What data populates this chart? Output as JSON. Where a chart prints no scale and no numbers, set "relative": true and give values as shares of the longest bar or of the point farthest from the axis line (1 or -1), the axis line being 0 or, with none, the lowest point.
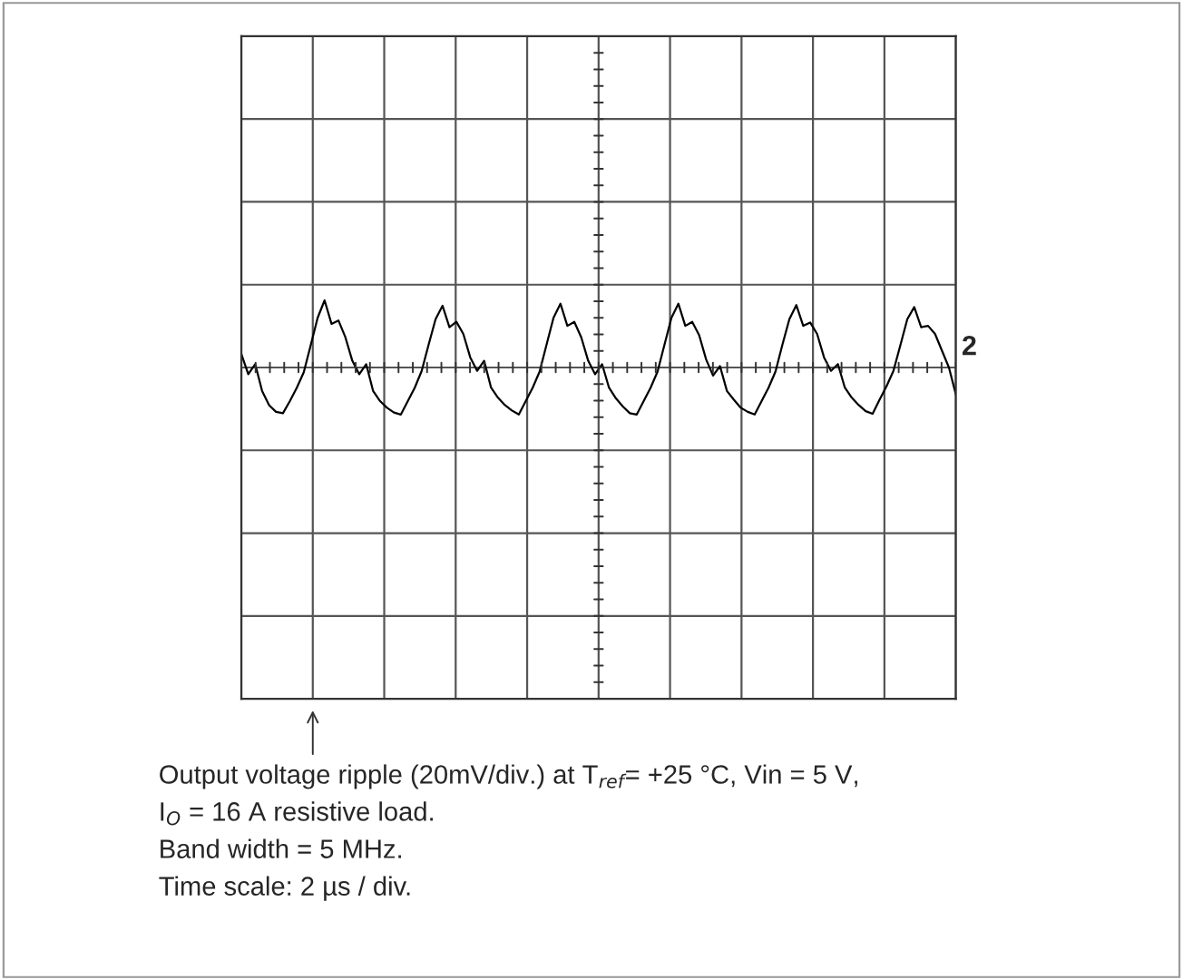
{
  "chart_data": {
    "type": "line",
    "relative": true,
    "grid": true,
    "tick_labels": false,
    "categories": [
      null,
      null,
      null,
      null,
      null,
      null,
      null,
      null,
      null,
      null,
      null,
      null,
      null,
      null,
      null,
      null,
      null,
      null,
      null,
      null,
      null,
      null,
      null,
      null,
      null,
      null,
      null,
      null,
      null,
      null,
      null,
      null,
      null,
      null,
      null,
      null,
      null,
      null,
      null,
      null,
      null,
      null,
      null,
      null,
      null,
      null,
      null,
      null,
      null,
      null,
      null,
      null,
      null,
      null,
      null,
      null,
      null,
      null,
      null,
      null,
      null,
      null,
      null,
      null,
      null,
      null,
      null,
      null,
      null,
      null,
      null,
      null,
      null,
      null,
      null,
      null,
      null,
      null,
      null,
      null,
      null,
      null,
      null,
      null,
      null,
      null,
      null,
      null,
      null,
      null,
      null,
      null,
      null,
      null,
      null,
      null,
      null,
      null,
      null,
      null,
      null,
      null,
      null,
      null
    ],
    "series": [
      {
        "color": "#000000",
        "values": [
          0.2,
          -0.1,
          0.05,
          -0.35,
          -0.56,
          -0.66,
          -0.68,
          -0.5,
          -0.3,
          -0.07,
          0.33,
          0.74,
          1.0,
          0.65,
          0.7,
          0.45,
          0.1,
          -0.1,
          0.05,
          -0.35,
          -0.5,
          -0.6,
          -0.67,
          -0.7,
          -0.5,
          -0.3,
          -0.05,
          0.34,
          0.72,
          0.92,
          0.6,
          0.68,
          0.5,
          0.15,
          -0.05,
          0.1,
          -0.3,
          -0.45,
          -0.56,
          -0.64,
          -0.7,
          -0.5,
          -0.3,
          -0.06,
          0.34,
          0.74,
          0.95,
          0.62,
          0.68,
          0.45,
          0.1,
          -0.1,
          0.05,
          -0.3,
          -0.46,
          -0.58,
          -0.68,
          -0.7,
          -0.5,
          -0.3,
          -0.06,
          0.34,
          0.74,
          0.95,
          0.62,
          0.68,
          0.48,
          0.12,
          -0.12,
          0.02,
          -0.35,
          -0.48,
          -0.6,
          -0.66,
          -0.7,
          -0.5,
          -0.3,
          -0.06,
          0.34,
          0.72,
          0.93,
          0.62,
          0.67,
          0.5,
          0.15,
          -0.05,
          0.05,
          -0.3,
          -0.45,
          -0.56,
          -0.65,
          -0.69,
          -0.48,
          -0.28,
          -0.05,
          0.33,
          0.72,
          0.9,
          0.6,
          0.62,
          0.5,
          0.25,
          0.0,
          -0.4
        ]
      }
    ],
    "annotations": [
      "2",
      "Output voltage ripple (20mV/div.) at T$_{ref}$= +25 °C, Vin = 5 V,",
      "I$_{O}$ = 16 A resistive load.",
      "Band width = 5 MHz.",
      "Time scale: 2 µs / div."
    ]
  }
}
